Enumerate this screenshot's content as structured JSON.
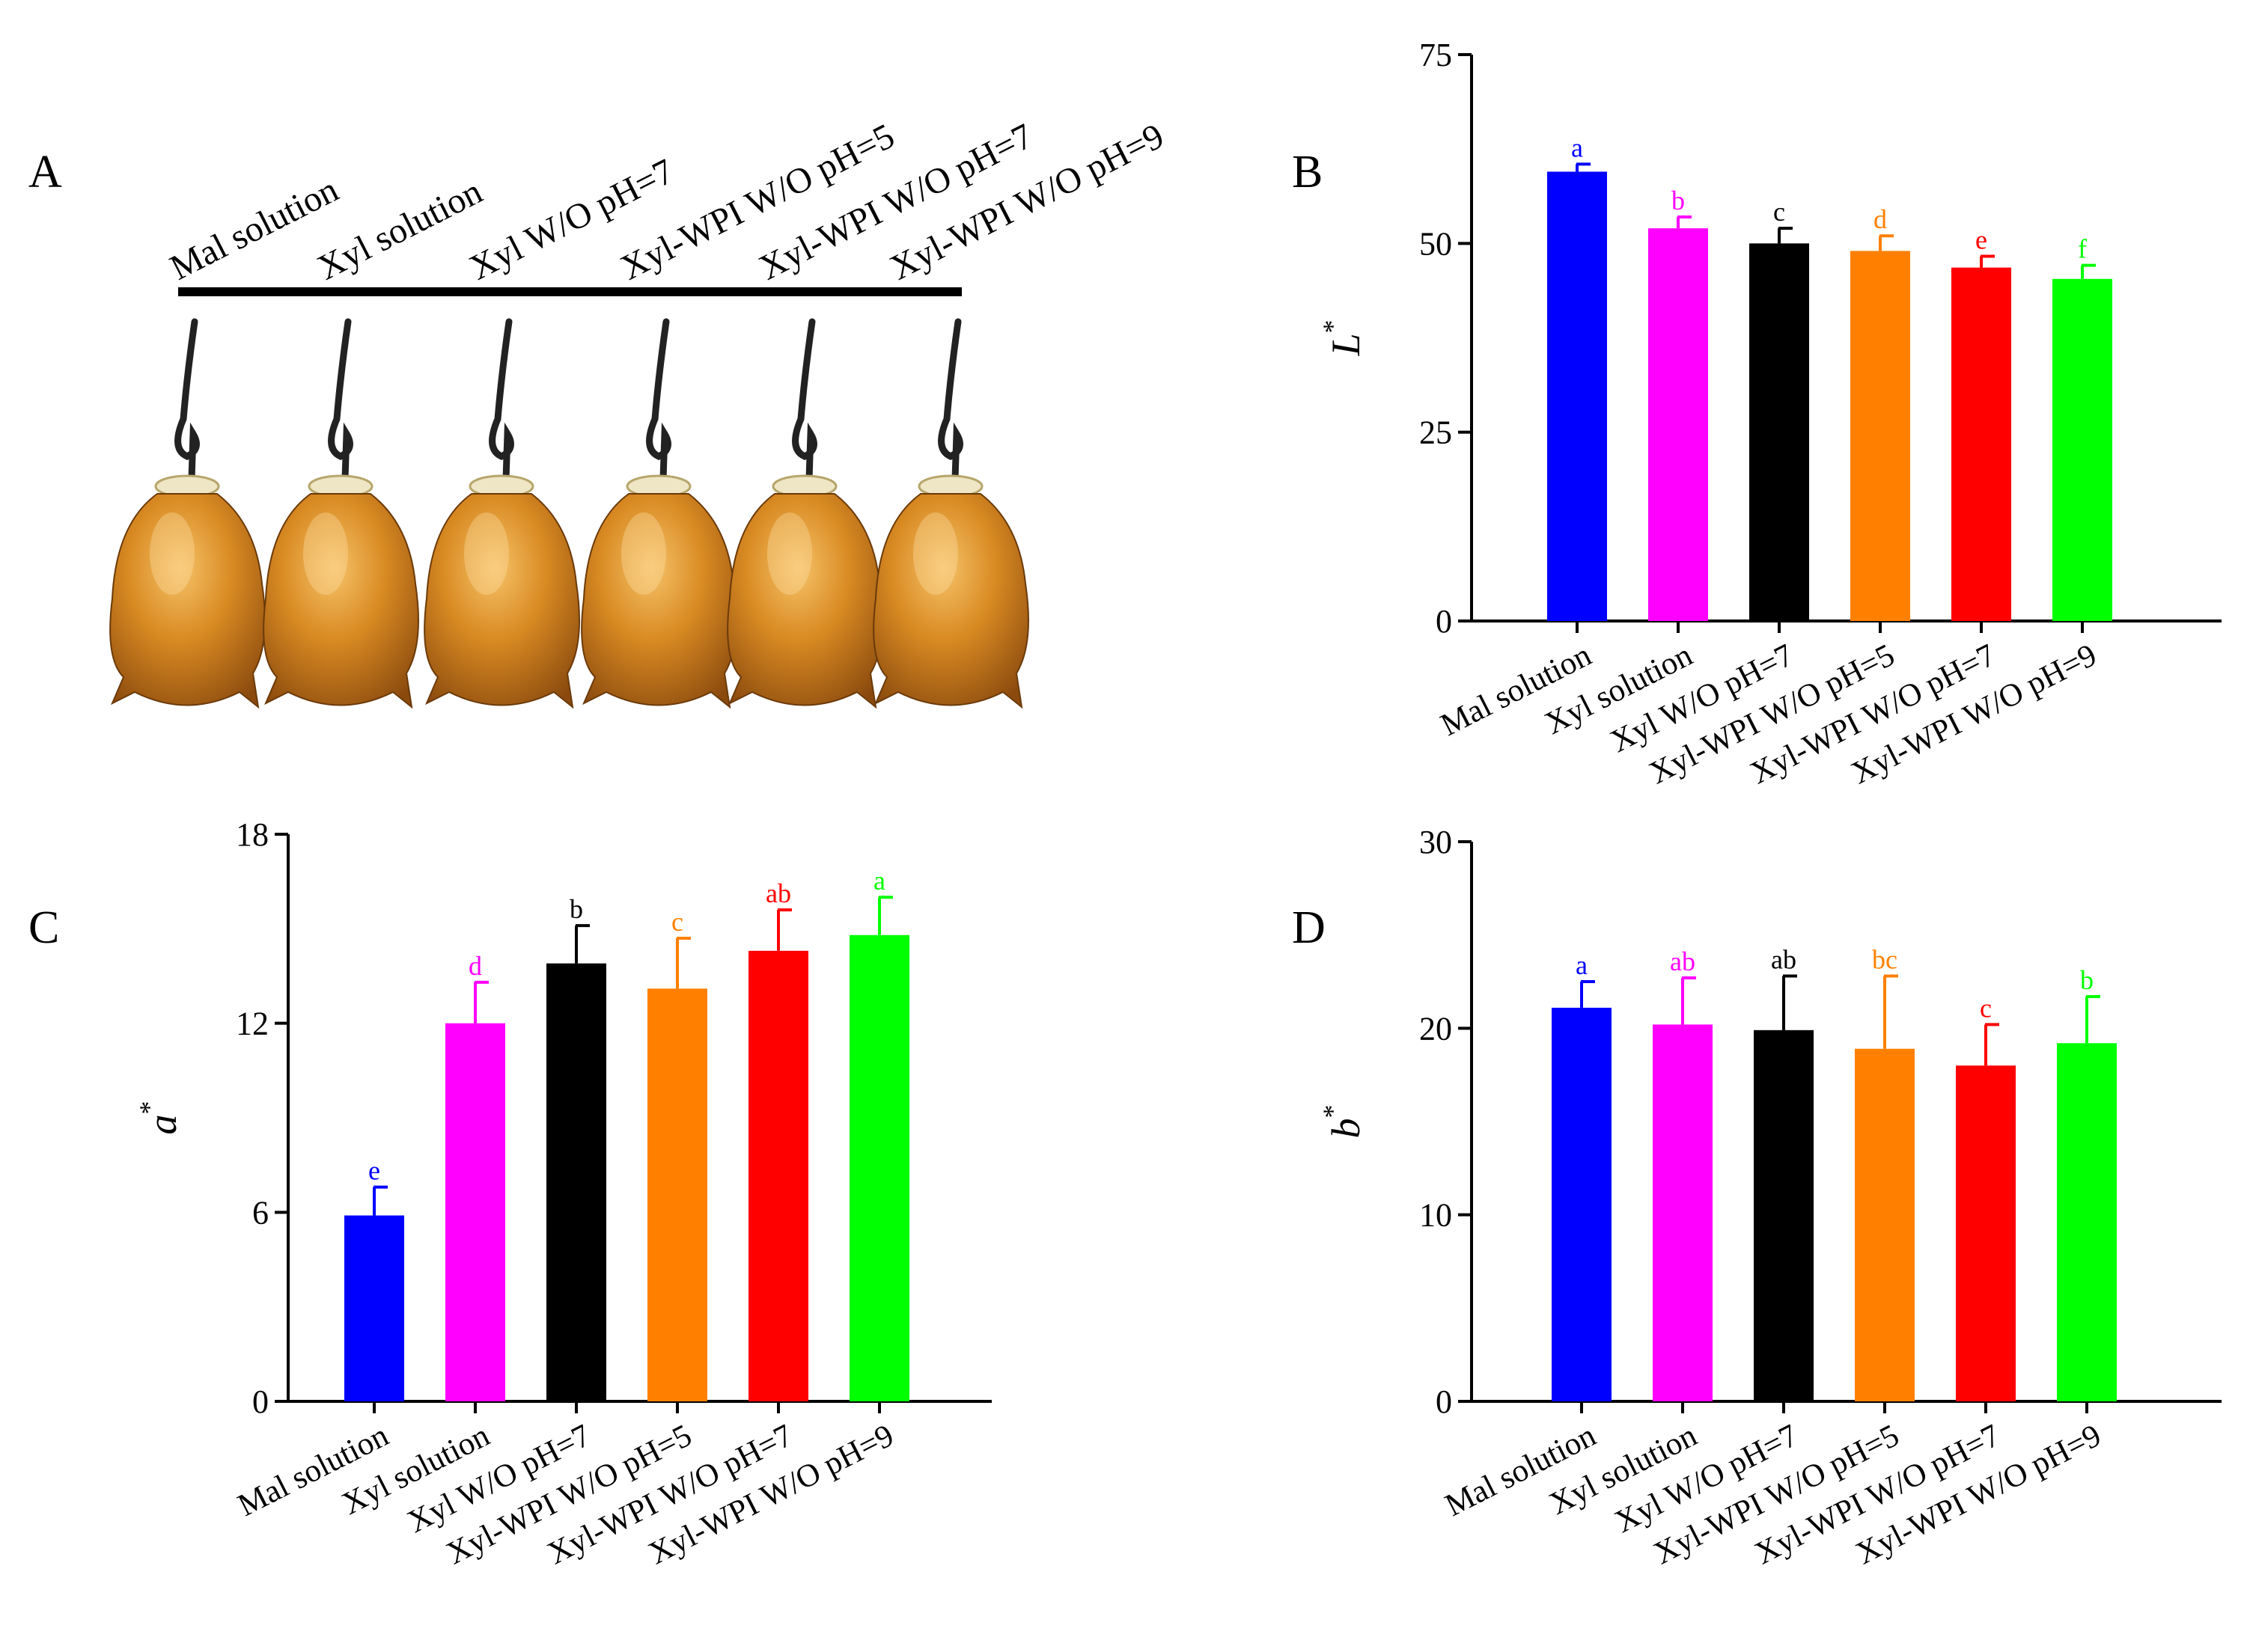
{
  "panel_a": {
    "letter": "A",
    "labels": [
      "Mal solution",
      "Xyl solution",
      "Xyl W/O pH=7",
      "Xyl-WPI W/O pH=5",
      "Xyl-WPI W/O pH=7",
      "Xyl-WPI W/O pH=9"
    ]
  },
  "colors": [
    "#0000ff",
    "#ff00ff",
    "#000000",
    "#ff8000",
    "#ff0000",
    "#00ff00"
  ],
  "chart_data": [
    {
      "panel": "B",
      "type": "bar",
      "ylabel": "L",
      "ylabel_sup": "*",
      "categories": [
        "Mal solution",
        "Xyl solution",
        "Xyl W/O pH=7",
        "Xyl-WPI W/O pH=5",
        "Xyl-WPI W/O pH=7",
        "Xyl-WPI W/O pH=9"
      ],
      "values": [
        59.5,
        52.0,
        50.0,
        49.0,
        46.8,
        45.3
      ],
      "errors": [
        1.0,
        1.5,
        2.0,
        2.0,
        1.5,
        1.8
      ],
      "letters": [
        "a",
        "b",
        "c",
        "d",
        "e",
        "f"
      ],
      "ylim": [
        0,
        75
      ],
      "yticks": [
        0,
        25,
        50,
        75
      ]
    },
    {
      "panel": "C",
      "type": "bar",
      "ylabel": "a",
      "ylabel_sup": "*",
      "categories": [
        "Mal solution",
        "Xyl solution",
        "Xyl W/O pH=7",
        "Xyl-WPI W/O pH=5",
        "Xyl-WPI W/O pH=7",
        "Xyl-WPI W/O pH=9"
      ],
      "values": [
        5.9,
        12.0,
        13.9,
        13.1,
        14.3,
        14.8
      ],
      "errors": [
        0.9,
        1.3,
        1.2,
        1.6,
        1.3,
        1.2
      ],
      "letters": [
        "e",
        "d",
        "b",
        "c",
        "ab",
        "a"
      ],
      "ylim": [
        0,
        18
      ],
      "yticks": [
        0,
        6,
        12,
        18
      ]
    },
    {
      "panel": "D",
      "type": "bar",
      "ylabel": "b",
      "ylabel_sup": "*",
      "categories": [
        "Mal solution",
        "Xyl solution",
        "Xyl W/O pH=7",
        "Xyl-WPI W/O pH=5",
        "Xyl-WPI W/O pH=7",
        "Xyl-WPI W/O pH=9"
      ],
      "values": [
        21.1,
        20.2,
        19.9,
        18.9,
        18.0,
        19.2
      ],
      "errors": [
        1.4,
        2.5,
        2.9,
        3.9,
        2.2,
        2.5
      ],
      "letters": [
        "a",
        "ab",
        "ab",
        "bc",
        "c",
        "b"
      ],
      "ylim": [
        0,
        30
      ],
      "yticks": [
        0,
        10,
        20,
        30
      ]
    }
  ]
}
